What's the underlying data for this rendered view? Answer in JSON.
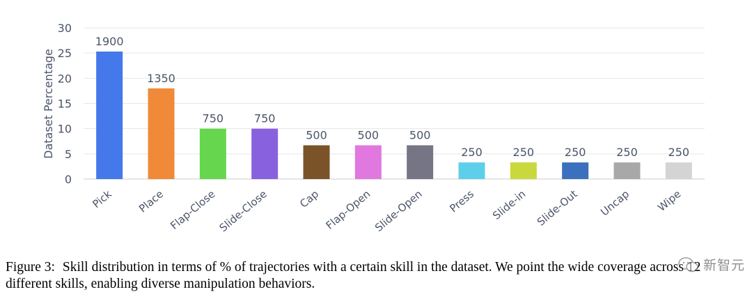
{
  "chart_data": {
    "type": "bar",
    "ylabel": "Dataset Percentage",
    "xlabel": "",
    "ylim": [
      0,
      30
    ],
    "yticks": [
      0,
      5,
      10,
      15,
      20,
      25,
      30
    ],
    "grid": true,
    "categories": [
      "Pick",
      "Place",
      "Flap-Close",
      "Slide-Close",
      "Cap",
      "Flap-Open",
      "Slide-Open",
      "Press",
      "Slide-in",
      "Slide-Out",
      "Uncap",
      "Wipe"
    ],
    "values": [
      25.3,
      18.0,
      10.0,
      10.0,
      6.7,
      6.7,
      6.7,
      3.3,
      3.3,
      3.3,
      3.3,
      3.3
    ],
    "data_labels": [
      "1900",
      "1350",
      "750",
      "750",
      "500",
      "500",
      "500",
      "250",
      "250",
      "250",
      "250",
      "250"
    ],
    "colors": [
      "#4578EA",
      "#F08A38",
      "#66D64E",
      "#8862DE",
      "#7A5328",
      "#E078E0",
      "#757585",
      "#5ECFEA",
      "#C9D83C",
      "#3A70BD",
      "#A8A8A8",
      "#D4D4D4"
    ]
  },
  "caption": {
    "label": "Figure 3:",
    "text": "Skill distribution in terms of % of trajectories with a certain skill in the dataset. We point the wide coverage across 12 different skills, enabling diverse manipulation behaviors."
  },
  "watermark": {
    "text": "新智元",
    "icon": "wechat-icon"
  },
  "colors": {
    "axis_text": "#4A5568",
    "grid": "#E6E6E6",
    "axis_line": "#CCCCCC"
  }
}
